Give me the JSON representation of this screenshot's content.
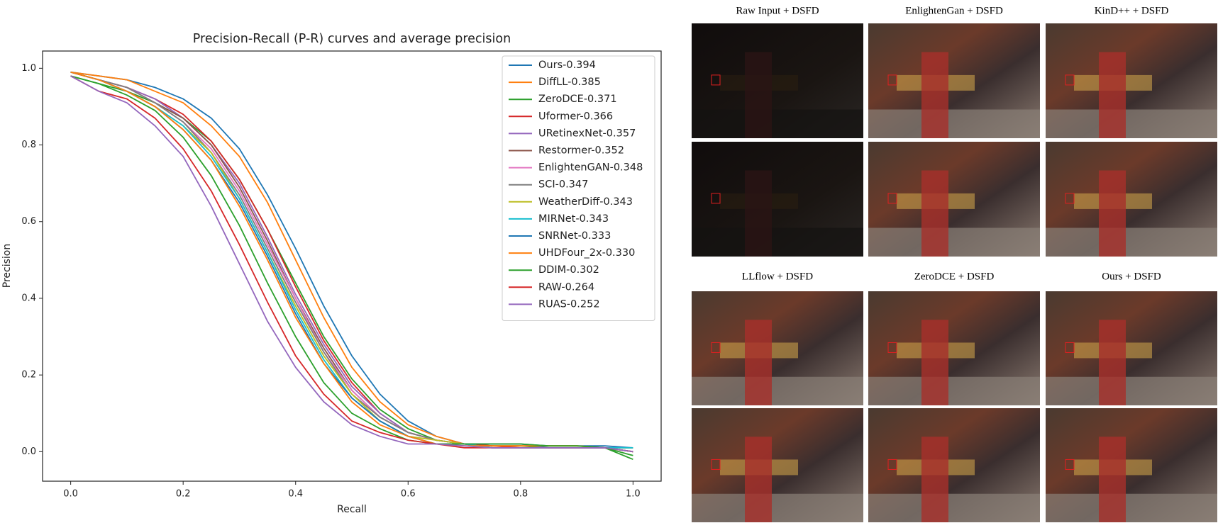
{
  "chart_data": {
    "type": "line",
    "title": "Precision-Recall (P-R) curves and average precision",
    "x_label": "Recall",
    "y_label": "Precision",
    "x": [
      0,
      0.05,
      0.1,
      0.15,
      0.2,
      0.25,
      0.3,
      0.35,
      0.4,
      0.45,
      0.5,
      0.55,
      0.6,
      0.65,
      0.7,
      0.75,
      0.8,
      0.85,
      0.9,
      0.95,
      1.0
    ],
    "xlim": [
      -0.05,
      1.05
    ],
    "ylim": [
      -0.077,
      1.045
    ],
    "xticks": [
      {
        "value": 0,
        "label": "0.0"
      },
      0.2,
      0.4,
      0.6,
      0.8,
      {
        "value": 1,
        "label": "1.0"
      }
    ],
    "yticks": [
      {
        "value": 0,
        "label": "0.0"
      },
      0.2,
      0.4,
      0.6,
      0.8,
      {
        "value": 1,
        "label": "1.0"
      }
    ],
    "grid": false,
    "legend": "upper right",
    "series": [
      {
        "name": "Ours-0.394",
        "color": "#1f77b4",
        "values": [
          0.99,
          0.98,
          0.97,
          0.95,
          0.92,
          0.87,
          0.79,
          0.67,
          0.53,
          0.38,
          0.25,
          0.15,
          0.08,
          0.04,
          0.02,
          0.02,
          0.02,
          0.015,
          0.015,
          0.015,
          0.01
        ]
      },
      {
        "name": "DiffLL-0.385",
        "color": "#ff7f0e",
        "values": [
          0.99,
          0.98,
          0.97,
          0.94,
          0.91,
          0.85,
          0.77,
          0.65,
          0.5,
          0.35,
          0.22,
          0.13,
          0.07,
          0.04,
          0.02,
          0.015,
          0.015,
          0.015,
          0.015,
          0.01,
          0.0
        ]
      },
      {
        "name": "ZeroDCE-0.371",
        "color": "#2ca02c",
        "values": [
          0.98,
          0.96,
          0.94,
          0.91,
          0.87,
          0.81,
          0.71,
          0.58,
          0.44,
          0.3,
          0.19,
          0.11,
          0.06,
          0.03,
          0.02,
          0.015,
          0.015,
          0.01,
          0.01,
          0.01,
          -0.02
        ]
      },
      {
        "name": "Uformer-0.366",
        "color": "#d62728",
        "values": [
          0.99,
          0.97,
          0.95,
          0.92,
          0.88,
          0.81,
          0.71,
          0.58,
          0.43,
          0.29,
          0.18,
          0.1,
          0.05,
          0.03,
          0.02,
          0.015,
          0.01,
          0.01,
          0.01,
          0.01,
          0.0
        ]
      },
      {
        "name": "URetinexNet-0.357",
        "color": "#9467bd",
        "values": [
          0.99,
          0.97,
          0.95,
          0.92,
          0.87,
          0.8,
          0.7,
          0.56,
          0.41,
          0.28,
          0.17,
          0.1,
          0.05,
          0.03,
          0.02,
          0.01,
          0.01,
          0.01,
          0.01,
          0.01,
          0.01
        ]
      },
      {
        "name": "Restormer-0.352",
        "color": "#8c564b",
        "values": [
          0.99,
          0.97,
          0.95,
          0.91,
          0.87,
          0.8,
          0.69,
          0.55,
          0.4,
          0.27,
          0.16,
          0.09,
          0.05,
          0.03,
          0.02,
          0.01,
          0.01,
          0.01,
          0.01,
          0.01,
          0.01
        ]
      },
      {
        "name": "EnlightenGAN-0.348",
        "color": "#e377c2",
        "values": [
          0.99,
          0.97,
          0.95,
          0.91,
          0.86,
          0.79,
          0.68,
          0.54,
          0.4,
          0.26,
          0.16,
          0.09,
          0.05,
          0.03,
          0.02,
          0.01,
          0.01,
          0.01,
          0.01,
          0.01,
          0.0
        ]
      },
      {
        "name": "SCI-0.347",
        "color": "#7f7f7f",
        "values": [
          0.99,
          0.97,
          0.95,
          0.91,
          0.86,
          0.78,
          0.67,
          0.53,
          0.39,
          0.26,
          0.15,
          0.09,
          0.05,
          0.03,
          0.02,
          0.01,
          0.01,
          0.01,
          0.01,
          0.01,
          0.0
        ]
      },
      {
        "name": "WeatherDiff-0.343",
        "color": "#bcbd22",
        "values": [
          0.99,
          0.97,
          0.94,
          0.9,
          0.85,
          0.78,
          0.66,
          0.52,
          0.38,
          0.25,
          0.15,
          0.08,
          0.04,
          0.03,
          0.02,
          0.01,
          0.01,
          0.01,
          0.01,
          0.01,
          0.01
        ]
      },
      {
        "name": "MIRNet-0.343",
        "color": "#17becf",
        "values": [
          0.99,
          0.97,
          0.94,
          0.9,
          0.85,
          0.77,
          0.66,
          0.52,
          0.37,
          0.24,
          0.14,
          0.08,
          0.04,
          0.02,
          0.02,
          0.01,
          0.01,
          0.01,
          0.01,
          0.01,
          0.01
        ]
      },
      {
        "name": "SNRNet-0.333",
        "color": "#1f77b4",
        "values": [
          0.99,
          0.97,
          0.94,
          0.9,
          0.84,
          0.76,
          0.65,
          0.51,
          0.36,
          0.23,
          0.14,
          0.08,
          0.04,
          0.02,
          0.02,
          0.02,
          0.02,
          0.01,
          0.01,
          0.01,
          0.0
        ]
      },
      {
        "name": "UHDFour_2x-0.330",
        "color": "#ff7f0e",
        "values": [
          0.99,
          0.97,
          0.94,
          0.9,
          0.84,
          0.76,
          0.64,
          0.5,
          0.35,
          0.23,
          0.13,
          0.07,
          0.04,
          0.02,
          0.015,
          0.015,
          0.015,
          0.015,
          0.015,
          0.01,
          0.0
        ]
      },
      {
        "name": "DDIM-0.302",
        "color": "#2ca02c",
        "values": [
          0.98,
          0.96,
          0.93,
          0.89,
          0.82,
          0.72,
          0.59,
          0.44,
          0.3,
          0.18,
          0.1,
          0.06,
          0.03,
          0.02,
          0.02,
          0.02,
          0.02,
          0.015,
          0.015,
          0.01,
          -0.01
        ]
      },
      {
        "name": "RAW-0.264",
        "color": "#d62728",
        "values": [
          0.98,
          0.94,
          0.92,
          0.87,
          0.79,
          0.68,
          0.54,
          0.39,
          0.25,
          0.15,
          0.08,
          0.05,
          0.03,
          0.02,
          0.01,
          0.01,
          0.01,
          0.01,
          0.01,
          0.01,
          0.0
        ]
      },
      {
        "name": "RUAS-0.252",
        "color": "#9467bd",
        "values": [
          0.98,
          0.94,
          0.91,
          0.85,
          0.77,
          0.64,
          0.49,
          0.34,
          0.22,
          0.13,
          0.07,
          0.04,
          0.02,
          0.02,
          0.015,
          0.01,
          0.01,
          0.01,
          0.01,
          0.01,
          0.0
        ]
      }
    ]
  },
  "image_grid": {
    "titles": [
      "Raw Input + DSFD",
      "EnlightenGan + DSFD",
      "KinD++  + DSFD",
      "LLflow + DSFD",
      "ZeroDCE + DSFD",
      "Ours + DSFD"
    ]
  }
}
